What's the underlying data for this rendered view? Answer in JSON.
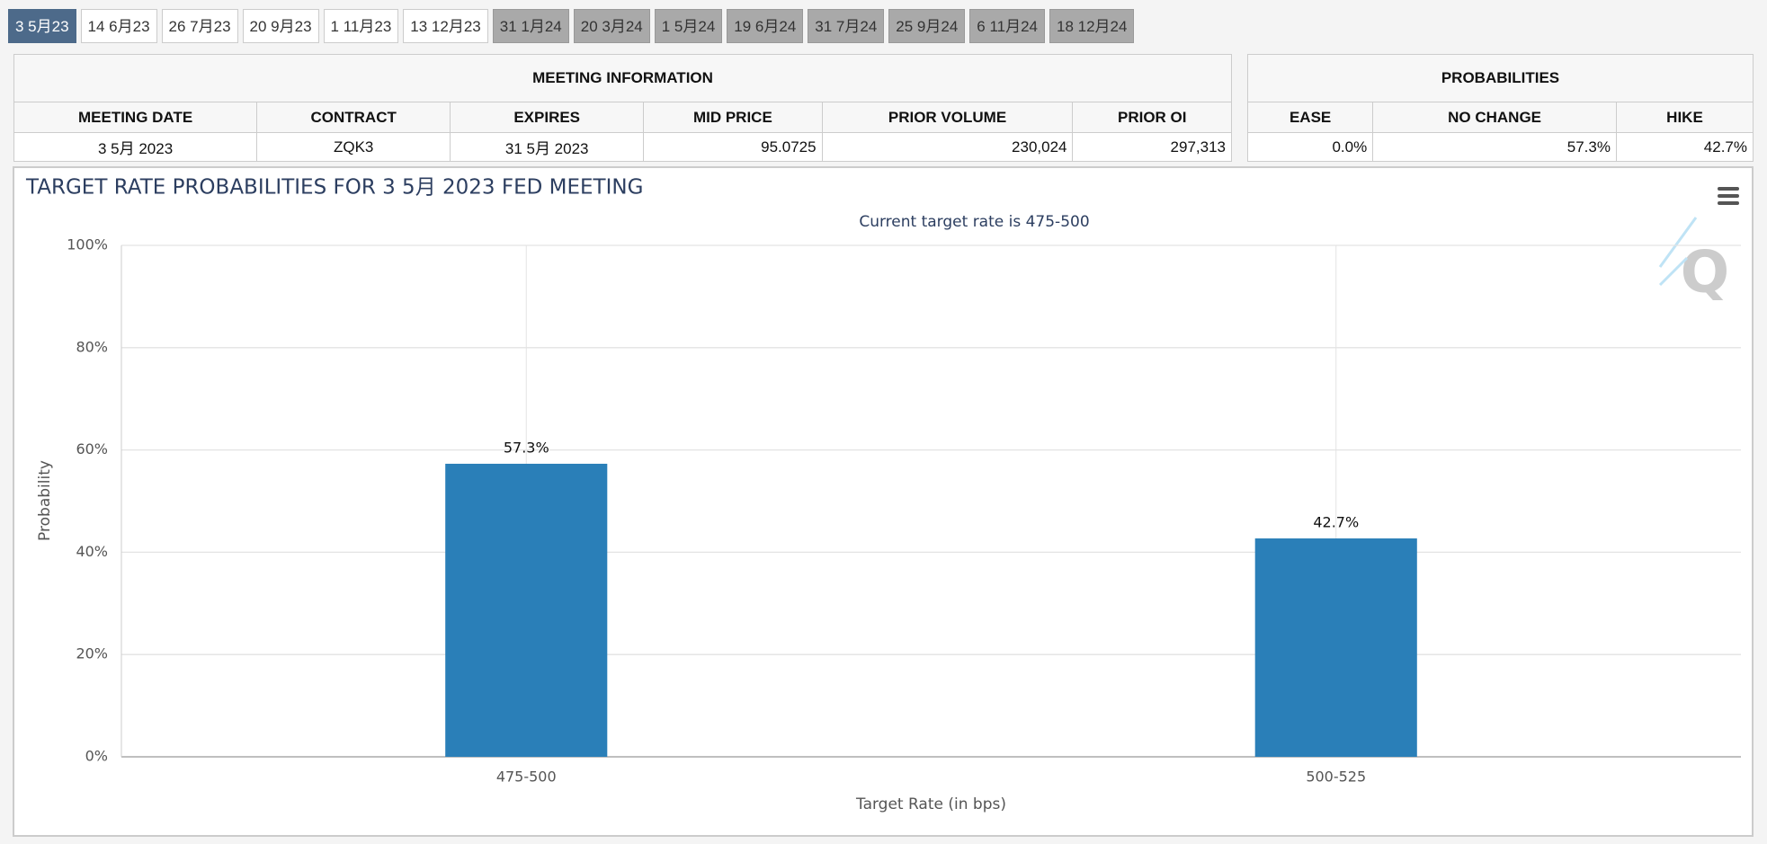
{
  "tabs": [
    "3 5月23",
    "14 6月23",
    "26 7月23",
    "20 9月23",
    "1 11月23",
    "13 12月23",
    "31 1月24",
    "20 3月24",
    "1 5月24",
    "19 6月24",
    "31 7月24",
    "25 9月24",
    "6 11月24",
    "18 12月24"
  ],
  "meeting_info": {
    "title": "MEETING INFORMATION",
    "headers": [
      "MEETING DATE",
      "CONTRACT",
      "EXPIRES",
      "MID PRICE",
      "PRIOR VOLUME",
      "PRIOR OI"
    ],
    "row": [
      "3 5月 2023",
      "ZQK3",
      "31 5月 2023",
      "95.0725",
      "230,024",
      "297,313"
    ]
  },
  "probabilities": {
    "title": "PROBABILITIES",
    "headers": [
      "EASE",
      "NO CHANGE",
      "HIKE"
    ],
    "row": [
      "0.0%",
      "57.3%",
      "42.7%"
    ]
  },
  "chart_data": {
    "type": "bar",
    "title": "TARGET RATE PROBABILITIES FOR 3 5月 2023 FED MEETING",
    "subtitle": "Current target rate is 475-500",
    "x_label": "Target Rate (in bps)",
    "y_label": "Probability",
    "categories": [
      "475-500",
      "500-525"
    ],
    "values": [
      57.3,
      42.7
    ],
    "value_labels": [
      "57.3%",
      "42.7%"
    ],
    "color": "#2a7fb8",
    "ylim": [
      0,
      100
    ],
    "yticks": [
      {
        "value": 0,
        "label": "0%"
      },
      {
        "value": 20,
        "label": "20%"
      },
      {
        "value": 40,
        "label": "40%"
      },
      {
        "value": 60,
        "label": "60%"
      },
      {
        "value": 80,
        "label": "80%"
      },
      {
        "value": 100,
        "label": "100%"
      }
    ],
    "grid": true
  }
}
